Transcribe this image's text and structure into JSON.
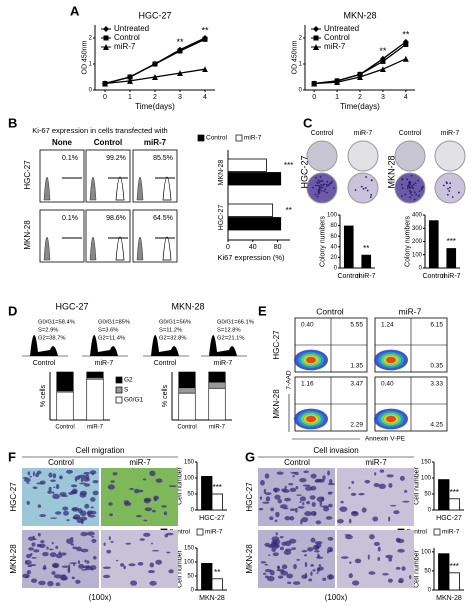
{
  "chart_data": [
    {
      "type": "line",
      "title": "HGC-27",
      "x": [
        0,
        1,
        2,
        3,
        4
      ],
      "xlim": [
        -0.4,
        4.4
      ],
      "xticks": [
        0,
        1,
        2,
        3,
        4
      ],
      "xlabel": "Time(days)",
      "ylabel": "OD 450nm",
      "ylim": [
        0,
        2.5
      ],
      "yticks": [
        0,
        1,
        2
      ],
      "legend": "top-left",
      "series": [
        {
          "name": "Untreated",
          "color": "#000000",
          "marker": "diamond",
          "values": [
            0.25,
            0.5,
            1.0,
            1.55,
            2.0
          ]
        },
        {
          "name": "Control",
          "color": "#000000",
          "marker": "square",
          "values": [
            0.25,
            0.5,
            1.0,
            1.5,
            1.95
          ]
        },
        {
          "name": "miR-7",
          "color": "#000000",
          "marker": "triangle",
          "values": [
            0.25,
            0.35,
            0.5,
            0.65,
            0.8
          ]
        }
      ],
      "annotations": [
        {
          "text": "**",
          "x": 3
        },
        {
          "text": "**",
          "x": 4
        }
      ]
    },
    {
      "type": "line",
      "title": "MKN-28",
      "x": [
        0,
        1,
        2,
        3,
        4
      ],
      "xlim": [
        -0.4,
        4.4
      ],
      "xticks": [
        0,
        1,
        2,
        3,
        4
      ],
      "xlabel": "Time(days)",
      "ylabel": "OD 450nm",
      "ylim": [
        0,
        2.5
      ],
      "yticks": [
        0,
        1,
        2
      ],
      "legend": "top-left",
      "series": [
        {
          "name": "Untreated",
          "color": "#000000",
          "marker": "diamond",
          "values": [
            0.25,
            0.35,
            0.6,
            1.2,
            1.85
          ]
        },
        {
          "name": "Control",
          "color": "#000000",
          "marker": "square",
          "values": [
            0.25,
            0.35,
            0.6,
            1.1,
            1.75
          ]
        },
        {
          "name": "miR-7",
          "color": "#000000",
          "marker": "triangle",
          "values": [
            0.25,
            0.3,
            0.5,
            0.8,
            1.2
          ]
        }
      ],
      "annotations": [
        {
          "text": "**",
          "x": 3
        },
        {
          "text": "**",
          "x": 4
        }
      ]
    },
    {
      "type": "hbar",
      "categories": [
        "MKN-28",
        "HGC-27"
      ],
      "xlim": [
        0,
        100
      ],
      "xticks": [
        0,
        40,
        80
      ],
      "xlabel": "Ki67 expression (%)",
      "legend": "top",
      "series": [
        {
          "name": "Control",
          "color": "#000000",
          "values": [
            85,
            85
          ]
        },
        {
          "name": "miR-7",
          "color": "#ffffff",
          "values": [
            62,
            72
          ]
        }
      ],
      "annotations": [
        {
          "text": "***"
        },
        {
          "text": "**"
        }
      ]
    },
    {
      "type": "bar",
      "categories": [
        "Control",
        "miR-7"
      ],
      "values": [
        80,
        25
      ],
      "color": "#000000",
      "ylabel": "Colony numbers",
      "ylim": [
        0,
        100
      ],
      "yticks": [
        0,
        20,
        40,
        60,
        80,
        100
      ],
      "annotations": [
        {
          "text": "**"
        }
      ]
    },
    {
      "type": "bar",
      "categories": [
        "Control",
        "miR-7"
      ],
      "values": [
        360,
        150
      ],
      "color": "#000000",
      "ylabel": "Colony numbers",
      "ylim": [
        0,
        400
      ],
      "yticks": [
        0,
        100,
        200,
        300,
        400
      ],
      "annotations": [
        {
          "text": "***"
        }
      ]
    },
    {
      "type": "stacked",
      "categories": [
        "Control",
        "miR-7"
      ],
      "ylabel": "% cells",
      "ylim": [
        0,
        100
      ],
      "legend": "right",
      "series": [
        {
          "name": "G2",
          "color": "#000000",
          "values": [
            38.7,
            11.4
          ]
        },
        {
          "name": "S",
          "color": "#999999",
          "values": [
            2.9,
            3.6
          ]
        },
        {
          "name": "G0/G1",
          "color": "#ffffff",
          "values": [
            58.4,
            85
          ]
        }
      ]
    },
    {
      "type": "stacked",
      "categories": [
        "Control",
        "miR-7"
      ],
      "ylabel": "% cells",
      "ylim": [
        0,
        100
      ],
      "series": [
        {
          "color": "#000000",
          "values": [
            32.8,
            21.1
          ]
        },
        {
          "color": "#999999",
          "values": [
            11.2,
            12.8
          ]
        },
        {
          "color": "#ffffff",
          "values": [
            56,
            66.1
          ]
        }
      ]
    },
    {
      "type": "bar",
      "categories": [
        "HGC-27"
      ],
      "ylabel": "Cell number",
      "ylim": [
        0,
        150
      ],
      "yticks": [
        0,
        50,
        100,
        150
      ],
      "legend": "bottom",
      "series": [
        {
          "name": "Control",
          "color": "#000000",
          "values": [
            105
          ]
        },
        {
          "name": "miR-7",
          "color": "#ffffff",
          "values": [
            50
          ]
        }
      ],
      "annotations": [
        {
          "text": "***"
        }
      ]
    },
    {
      "type": "bar",
      "categories": [
        "MKN-28"
      ],
      "ylabel": "Cell number",
      "ylim": [
        0,
        150
      ],
      "yticks": [
        0,
        50,
        100,
        150
      ],
      "series": [
        {
          "color": "#000000",
          "values": [
            95
          ]
        },
        {
          "color": "#ffffff",
          "values": [
            40
          ]
        }
      ],
      "annotations": [
        {
          "text": "**"
        }
      ]
    },
    {
      "type": "bar",
      "categories": [
        "HGC-27"
      ],
      "ylabel": "Cell number",
      "ylim": [
        0,
        150
      ],
      "yticks": [
        0,
        50,
        100,
        150
      ],
      "legend": "bottom",
      "series": [
        {
          "name": "Control",
          "color": "#000000",
          "values": [
            95
          ]
        },
        {
          "name": "miR-7",
          "color": "#ffffff",
          "values": [
            35
          ]
        }
      ],
      "annotations": [
        {
          "text": "***"
        }
      ]
    },
    {
      "type": "bar",
      "categories": [
        "MKN-28"
      ],
      "ylabel": "Cell number",
      "ylim": [
        0,
        110
      ],
      "yticks": [
        0,
        50,
        100
      ],
      "series": [
        {
          "color": "#000000",
          "values": [
            95
          ]
        },
        {
          "color": "#ffffff",
          "values": [
            45
          ]
        }
      ],
      "annotations": [
        {
          "text": "***"
        }
      ]
    }
  ],
  "figure": {
    "panels": [
      "A",
      "B",
      "C",
      "D",
      "E",
      "F",
      "G"
    ],
    "b": {
      "header": "Ki-67 expression in cells transfected with",
      "columns": [
        "None",
        "Control",
        "miR-7"
      ],
      "rows": [
        "HGC-27",
        "MKN-28"
      ],
      "percents": [
        [
          "0.1%",
          "99.2%",
          "85.5%"
        ],
        [
          "0.1%",
          "98.6%",
          "64.5%"
        ]
      ]
    },
    "c": {
      "columns": [
        "Control",
        "miR-7",
        "Control",
        "miR-7"
      ],
      "rows": [
        "HGC-27",
        "MKN-28"
      ]
    },
    "d": {
      "titles": [
        "HGC-27",
        "MKN-28"
      ],
      "columns": [
        "Control",
        "miR-7",
        "Control",
        "miR-7"
      ],
      "stats": [
        [
          "G0/G1=58.4%",
          "S=2.9%",
          "G2=38.7%"
        ],
        [
          "G0/G1=85%",
          "S=3.6%",
          "G2=11.4%"
        ],
        [
          "G0/G1=56%",
          "S=11.2%",
          "G2=32.8%"
        ],
        [
          "G0/G1=66.1%",
          "S=12.8%",
          "G2=21.1%"
        ]
      ]
    },
    "e": {
      "columns": [
        "Control",
        "miR-7"
      ],
      "rows": [
        "HGC-27",
        "MKN-28"
      ],
      "y_label": "7-AAD",
      "x_label": "Annexin V-PE",
      "quadrants": [
        [
          [
            "0.40",
            "5.55",
            "1.35"
          ],
          [
            "1.24",
            "6.15",
            "0.35"
          ]
        ],
        [
          [
            "1.16",
            "3.47",
            "2.29"
          ],
          [
            "0.40",
            "3.33",
            "4.25"
          ]
        ]
      ]
    },
    "f": {
      "title": "Cell migration",
      "columns": [
        "Control",
        "miR-7"
      ],
      "rows": [
        "HGC-27",
        "MKN-28"
      ],
      "magnification": "(100x)"
    },
    "g": {
      "title": "Cell invasion",
      "columns": [
        "Control",
        "miR-7"
      ],
      "rows": [
        "HGC-27",
        "MKN-28"
      ],
      "magnification": "(100x)"
    }
  }
}
